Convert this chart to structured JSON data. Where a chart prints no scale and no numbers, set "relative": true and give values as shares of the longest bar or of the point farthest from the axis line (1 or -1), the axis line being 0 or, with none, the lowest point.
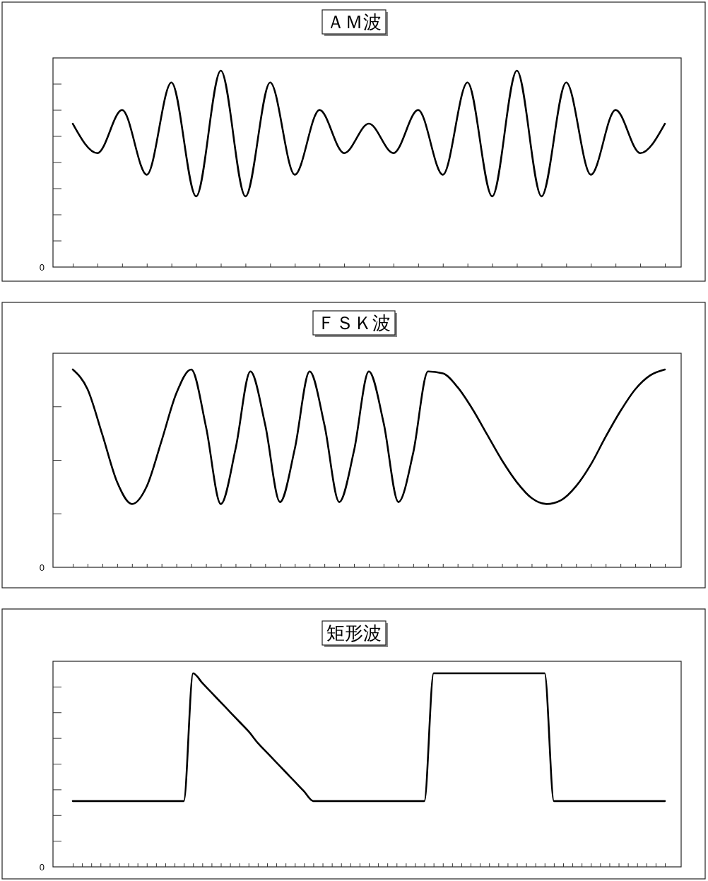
{
  "chart_data": [
    {
      "type": "line",
      "title": "ＡＭ波",
      "relative": true,
      "annotations": [
        "0"
      ],
      "line_style": "solid",
      "categories": [
        null,
        null,
        null,
        null,
        null,
        null,
        null,
        null,
        null,
        null,
        null,
        null,
        null,
        null,
        null,
        null,
        null,
        null,
        null,
        null,
        null,
        null,
        null,
        null,
        null
      ],
      "series": [
        {
          "color": "#000000",
          "values": [
            0.73,
            0.58,
            0.8,
            0.47,
            0.94,
            0.36,
            1,
            0.36,
            0.94,
            0.47,
            0.8,
            0.58,
            0.73,
            0.58,
            0.8,
            0.47,
            0.94,
            0.36,
            1,
            0.36,
            0.94,
            0.47,
            0.8,
            0.58,
            0.73
          ]
        }
      ]
    },
    {
      "type": "line",
      "title": "ＦＳＫ波",
      "relative": true,
      "annotations": [
        "0"
      ],
      "line_style": "solid",
      "categories": [
        null,
        null,
        null,
        null,
        null,
        null,
        null,
        null,
        null,
        null,
        null,
        null,
        null,
        null,
        null,
        null,
        null,
        null,
        null,
        null,
        null,
        null,
        null,
        null,
        null,
        null,
        null,
        null,
        null,
        null,
        null,
        null,
        null,
        null,
        null,
        null,
        null,
        null,
        null,
        null,
        null
      ],
      "series": [
        {
          "color": "#000000",
          "values": [
            1,
            0.9,
            0.67,
            0.43,
            0.32,
            0.41,
            0.64,
            0.88,
            1,
            0.71,
            0.32,
            0.6,
            0.99,
            0.72,
            0.33,
            0.6,
            0.99,
            0.72,
            0.33,
            0.59,
            0.99,
            0.73,
            0.33,
            0.58,
            0.99,
            0.98,
            0.91,
            0.8,
            0.67,
            0.54,
            0.43,
            0.35,
            0.32,
            0.34,
            0.41,
            0.52,
            0.66,
            0.79,
            0.9,
            0.97,
            1
          ]
        }
      ]
    },
    {
      "type": "line",
      "title": "矩形波",
      "relative": true,
      "annotations": [
        "0"
      ],
      "line_style": "solid",
      "categories": [
        null,
        null,
        null,
        null,
        null,
        null,
        null,
        null,
        null,
        null,
        null,
        null,
        null,
        null,
        null,
        null,
        null,
        null,
        null,
        null,
        null,
        null,
        null,
        null,
        null,
        null,
        null,
        null,
        null,
        null,
        null,
        null,
        null,
        null,
        null,
        null,
        null,
        null,
        null,
        null,
        null,
        null,
        null,
        null,
        null,
        null,
        null,
        null,
        null,
        null,
        null,
        null,
        null,
        null,
        null,
        null,
        null,
        null,
        null,
        null,
        null,
        null,
        null,
        null,
        null
      ],
      "series": [
        {
          "color": "#000000",
          "values": [
            0.34,
            0.34,
            0.34,
            0.34,
            0.34,
            0.34,
            0.34,
            0.34,
            0.34,
            0.34,
            0.34,
            0.34,
            0.34,
            1,
            0.95,
            0.9,
            0.85,
            0.8,
            0.75,
            0.7,
            0.64,
            0.59,
            0.54,
            0.49,
            0.44,
            0.39,
            0.34,
            0.34,
            0.34,
            0.34,
            0.34,
            0.34,
            0.34,
            0.34,
            0.34,
            0.34,
            0.34,
            0.34,
            0.34,
            1,
            1,
            1,
            1,
            1,
            1,
            1,
            1,
            1,
            1,
            1,
            1,
            1,
            0.34,
            0.34,
            0.34,
            0.34,
            0.34,
            0.34,
            0.34,
            0.34,
            0.34,
            0.34,
            0.34,
            0.34,
            0.34
          ]
        }
      ]
    }
  ]
}
